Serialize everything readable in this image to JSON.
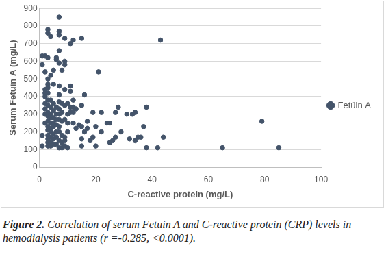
{
  "chart_data": {
    "type": "scatter",
    "x_label": "C-reactive protein (mg/L)",
    "y_label": "Serum Fetuin A (mg/L)",
    "caption_label": "Figure 2.",
    "caption": "Correlation of serum Fetuin A and C-reactive protein (CRP) levels in hemodialysis patients (r =-0.285, <0.0001).",
    "xlim": [
      0,
      100
    ],
    "xticks": [
      0,
      20,
      40,
      60,
      80,
      100
    ],
    "ylim": [
      0,
      900
    ],
    "yticks": [
      0,
      100,
      200,
      300,
      400,
      500,
      600,
      700,
      800,
      900
    ],
    "grid": true,
    "legend": "right",
    "x": [
      1,
      1,
      1,
      1,
      2,
      2,
      2,
      2,
      2,
      2,
      2,
      2,
      2,
      3,
      3,
      3,
      3,
      3,
      3,
      3,
      3,
      3,
      3,
      3,
      3,
      3,
      3,
      3,
      3,
      3,
      3,
      4,
      4,
      4,
      4,
      4,
      4,
      4,
      4,
      4,
      4,
      4,
      4,
      5,
      5,
      5,
      5,
      5,
      5,
      5,
      5,
      5,
      5,
      6,
      6,
      6,
      6,
      6,
      6,
      6,
      6,
      6,
      7,
      7,
      7,
      7,
      7,
      7,
      7,
      7,
      7,
      7,
      7,
      7,
      7,
      7,
      7,
      8,
      8,
      8,
      8,
      8,
      8,
      8,
      9,
      9,
      9,
      9,
      9,
      9,
      9,
      9,
      9,
      10,
      10,
      10,
      10,
      10,
      11,
      11,
      11,
      11,
      11,
      12,
      12,
      12,
      12,
      12,
      13,
      13,
      14,
      15,
      15,
      15,
      15,
      15,
      16,
      16,
      17,
      17,
      18,
      19,
      19,
      20,
      20,
      21,
      22,
      22,
      24,
      25,
      25,
      26,
      27,
      27,
      28,
      29,
      31,
      32,
      33,
      34,
      34,
      35,
      36,
      37,
      38,
      38,
      42,
      43,
      44,
      65,
      79,
      85
    ],
    "series": [
      {
        "name": "Fetüin A",
        "color": "#44546a",
        "marker": "circle",
        "values": [
          180,
          120,
          580,
          630,
          630,
          540,
          420,
          440,
          400,
          360,
          330,
          300,
          250,
          760,
          780,
          620,
          500,
          470,
          450,
          420,
          380,
          350,
          310,
          290,
          260,
          230,
          210,
          180,
          160,
          140,
          120,
          740,
          520,
          380,
          340,
          300,
          280,
          250,
          220,
          200,
          170,
          140,
          120,
          550,
          470,
          360,
          320,
          280,
          250,
          230,
          190,
          160,
          130,
          610,
          620,
          340,
          300,
          270,
          240,
          200,
          170,
          130,
          850,
          770,
          750,
          660,
          590,
          460,
          410,
          370,
          330,
          300,
          270,
          230,
          200,
          150,
          110,
          550,
          360,
          310,
          260,
          180,
          140,
          110,
          730,
          580,
          600,
          440,
          350,
          270,
          170,
          150,
          120,
          360,
          300,
          250,
          200,
          110,
          700,
          460,
          430,
          340,
          310,
          720,
          380,
          340,
          310,
          250,
          330,
          220,
          240,
          730,
          350,
          230,
          160,
          120,
          410,
          200,
          260,
          220,
          150,
          310,
          170,
          120,
          230,
          540,
          310,
          200,
          250,
          250,
          140,
          150,
          310,
          170,
          340,
          200,
          300,
          160,
          300,
          310,
          150,
          170,
          170,
          230,
          340,
          110,
          110,
          720,
          170,
          110,
          260,
          110
        ]
      }
    ]
  }
}
